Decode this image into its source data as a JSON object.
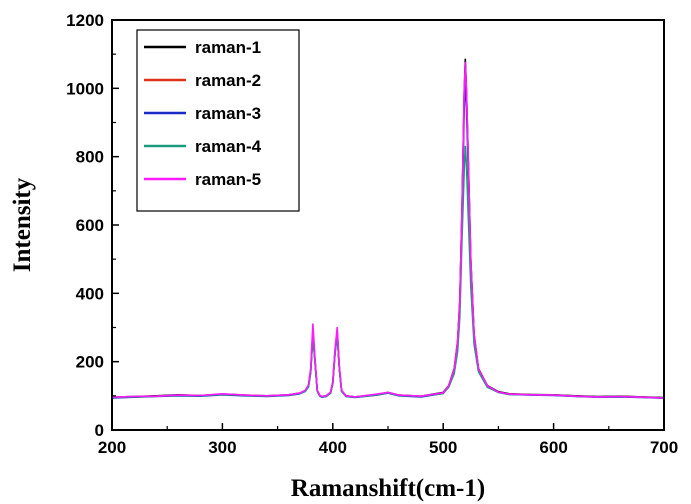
{
  "chart_data": {
    "type": "line",
    "title": "",
    "xlabel": "Ramanshift(cm-1)",
    "ylabel": "Intensity",
    "xlim": [
      200,
      700
    ],
    "ylim": [
      0,
      1200
    ],
    "xticks": [
      200,
      300,
      400,
      500,
      600,
      700
    ],
    "yticks": [
      0,
      200,
      400,
      600,
      800,
      1000,
      1200
    ],
    "grid": false,
    "legend_position": "top-left",
    "x": [
      200,
      220,
      240,
      260,
      280,
      300,
      320,
      340,
      360,
      370,
      375,
      378,
      380,
      382,
      384,
      386,
      388,
      390,
      394,
      398,
      400,
      402,
      404,
      406,
      408,
      412,
      420,
      440,
      450,
      460,
      480,
      500,
      505,
      510,
      513,
      515,
      517,
      519,
      520,
      521,
      523,
      525,
      528,
      532,
      540,
      550,
      560,
      580,
      600,
      620,
      640,
      660,
      680,
      700
    ],
    "series": [
      {
        "name": "raman-1",
        "color": "#000000",
        "values": [
          96,
          98,
          100,
          103,
          101,
          105,
          102,
          100,
          103,
          108,
          115,
          130,
          175,
          290,
          200,
          115,
          102,
          98,
          100,
          110,
          140,
          230,
          290,
          180,
          115,
          100,
          97,
          104,
          110,
          102,
          99,
          110,
          130,
          180,
          260,
          380,
          650,
          990,
          1085,
          1000,
          760,
          500,
          280,
          180,
          130,
          112,
          106,
          104,
          103,
          100,
          98,
          99,
          97,
          95
        ]
      },
      {
        "name": "raman-2",
        "color": "#e03020",
        "values": [
          95,
          97,
          99,
          101,
          100,
          104,
          101,
          99,
          102,
          107,
          114,
          128,
          172,
          285,
          198,
          114,
          101,
          97,
          99,
          109,
          138,
          226,
          286,
          178,
          114,
          99,
          96,
          103,
          109,
          101,
          98,
          108,
          128,
          176,
          255,
          372,
          640,
          975,
          1060,
          985,
          748,
          492,
          276,
          178,
          128,
          111,
          105,
          103,
          102,
          99,
          97,
          98,
          96,
          94
        ]
      },
      {
        "name": "raman-3",
        "color": "#1a2ac8",
        "values": [
          94,
          96,
          98,
          100,
          99,
          103,
          100,
          98,
          101,
          106,
          113,
          127,
          170,
          280,
          195,
          113,
          100,
          96,
          98,
          108,
          136,
          222,
          282,
          176,
          113,
          98,
          95,
          102,
          108,
          100,
          97,
          107,
          126,
          172,
          250,
          360,
          620,
          940,
          1020,
          950,
          725,
          480,
          270,
          175,
          126,
          110,
          104,
          102,
          101,
          98,
          96,
          97,
          95,
          93
        ]
      },
      {
        "name": "raman-4",
        "color": "#1a9a7a",
        "values": [
          95,
          97,
          99,
          101,
          100,
          104,
          101,
          99,
          102,
          107,
          113,
          126,
          168,
          278,
          194,
          113,
          101,
          97,
          99,
          108,
          137,
          224,
          284,
          177,
          113,
          99,
          96,
          103,
          109,
          101,
          98,
          107,
          125,
          165,
          230,
          330,
          560,
          760,
          830,
          780,
          600,
          420,
          250,
          170,
          125,
          110,
          104,
          103,
          102,
          99,
          97,
          98,
          96,
          94
        ]
      },
      {
        "name": "raman-5",
        "color": "#ff1aff",
        "values": [
          96,
          98,
          99,
          102,
          101,
          106,
          102,
          100,
          103,
          108,
          116,
          132,
          180,
          310,
          205,
          116,
          102,
          98,
          100,
          111,
          142,
          235,
          300,
          185,
          116,
          100,
          97,
          105,
          110,
          102,
          99,
          109,
          129,
          178,
          258,
          375,
          645,
          985,
          1075,
          995,
          755,
          498,
          279,
          179,
          129,
          111,
          105,
          103,
          102,
          99,
          97,
          98,
          96,
          94
        ]
      }
    ]
  }
}
